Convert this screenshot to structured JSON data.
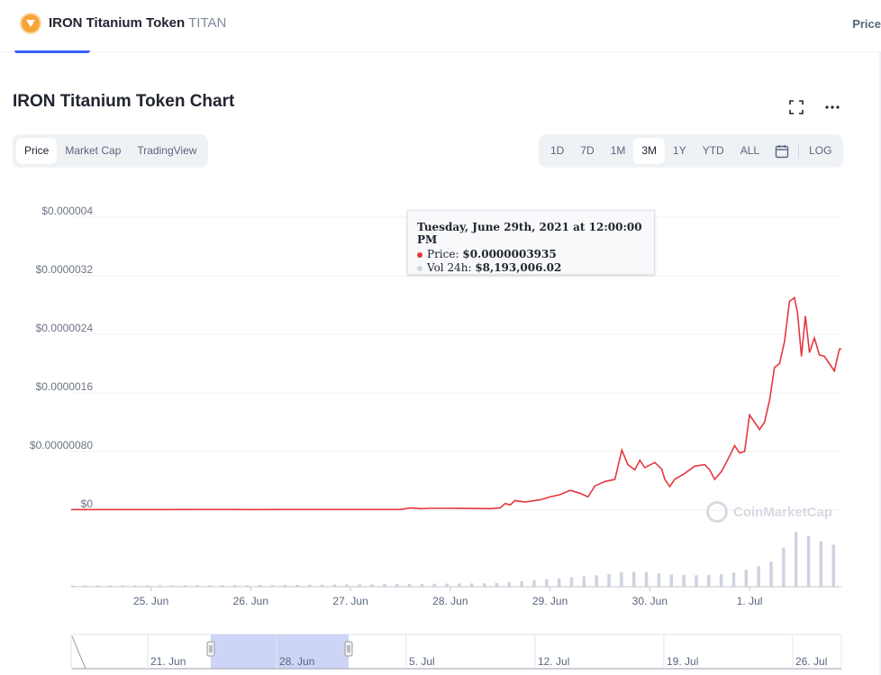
{
  "header": {
    "token_name": "IRON Titanium Token",
    "token_symbol": "TITAN",
    "right_label": "Price"
  },
  "chart_header": {
    "title": "IRON Titanium Token Chart"
  },
  "chart_type_tabs": [
    "Price",
    "Market Cap",
    "TradingView"
  ],
  "chart_type_active": "Price",
  "range_tabs": [
    "1D",
    "7D",
    "1M",
    "3M",
    "1Y",
    "YTD",
    "ALL"
  ],
  "range_active": "3M",
  "log_label": "LOG",
  "icons": {
    "logo": "iron-titanium-logo-icon",
    "fullscreen": "fullscreen-icon",
    "more": "more-icon",
    "calendar": "calendar-icon",
    "watermark": "coinmarketcap-logo-icon"
  },
  "tooltip": {
    "date": "Tuesday, June 29th, 2021 at 12:00:00 PM",
    "price_label": "Price:",
    "price_value": "$0.0000003935",
    "volume_label": "Vol 24h:",
    "volume_value": "$8,193,006.02"
  },
  "watermark_text": "CoinMarketCap",
  "colors": {
    "price_line": "#e4383d",
    "volume_bar": "#cfd3df",
    "navigator_window": "#c6cdf5",
    "accent": "#3861fb"
  },
  "chart_data": {
    "type": "line",
    "y_axis_labels": [
      "$0",
      "$0.00000080",
      "$0.0000016",
      "$0.0000024",
      "$0.0000032",
      "$0.000004"
    ],
    "y_axis_values": [
      0,
      8e-07,
      1.6e-06,
      2.4e-06,
      3.2e-06,
      4e-06
    ],
    "ylim": [
      0,
      4e-06
    ],
    "x_axis_labels": [
      "25. Jun",
      "26. Jun",
      "27. Jun",
      "28. Jun",
      "29. Jun",
      "30. Jun",
      "1. Jul"
    ],
    "xlim_days": [
      24.2,
      31.92
    ],
    "grid": true,
    "series": [
      {
        "values": [
          [
            24.2,
            8e-09
          ],
          [
            24.5,
            7.5e-09
          ],
          [
            24.8,
            7e-09
          ],
          [
            25.1,
            8e-09
          ],
          [
            25.4,
            8.2e-09
          ],
          [
            25.7,
            8.5e-09
          ],
          [
            26.0,
            8e-09
          ],
          [
            26.3,
            8.2e-09
          ],
          [
            26.6,
            8.5e-09
          ],
          [
            26.9,
            8.8e-09
          ],
          [
            27.2,
            9e-09
          ],
          [
            27.5,
            9.2e-09
          ],
          [
            27.6,
            3e-08
          ],
          [
            27.7,
            2e-08
          ],
          [
            27.8,
            2.5e-08
          ],
          [
            28.0,
            2.5e-08
          ],
          [
            28.2,
            2.2e-08
          ],
          [
            28.4,
            2e-08
          ],
          [
            28.5,
            3e-08
          ],
          [
            28.55,
            9e-08
          ],
          [
            28.6,
            7e-08
          ],
          [
            28.65,
            1.3e-07
          ],
          [
            28.75,
            1.1e-07
          ],
          [
            28.9,
            1.4e-07
          ],
          [
            29.0,
            1.8e-07
          ],
          [
            29.1,
            2.1e-07
          ],
          [
            29.2,
            2.7e-07
          ],
          [
            29.3,
            2.3e-07
          ],
          [
            29.38,
            1.8e-07
          ],
          [
            29.45,
            3.3e-07
          ],
          [
            29.55,
            3.9e-07
          ],
          [
            29.65,
            4.2e-07
          ],
          [
            29.72,
            8.2e-07
          ],
          [
            29.78,
            6.2e-07
          ],
          [
            29.85,
            5.5e-07
          ],
          [
            29.9,
            6.8e-07
          ],
          [
            29.95,
            5.8e-07
          ],
          [
            30.05,
            6.5e-07
          ],
          [
            30.12,
            5.6e-07
          ],
          [
            30.15,
            4.2e-07
          ],
          [
            30.2,
            3.2e-07
          ],
          [
            30.25,
            4.2e-07
          ],
          [
            30.35,
            5e-07
          ],
          [
            30.45,
            6e-07
          ],
          [
            30.55,
            6.2e-07
          ],
          [
            30.6,
            5.5e-07
          ],
          [
            30.65,
            4.2e-07
          ],
          [
            30.72,
            5.3e-07
          ],
          [
            30.8,
            7.4e-07
          ],
          [
            30.85,
            8.8e-07
          ],
          [
            30.9,
            7.8e-07
          ],
          [
            30.95,
            8e-07
          ],
          [
            31.0,
            1.3e-06
          ],
          [
            31.05,
            1.2e-06
          ],
          [
            31.1,
            1.1e-06
          ],
          [
            31.15,
            1.2e-06
          ],
          [
            31.2,
            1.5e-06
          ],
          [
            31.25,
            1.95e-06
          ],
          [
            31.3,
            2e-06
          ],
          [
            31.35,
            2.3e-06
          ],
          [
            31.4,
            2.85e-06
          ],
          [
            31.45,
            2.9e-06
          ],
          [
            31.48,
            2.7e-06
          ],
          [
            31.52,
            2.1e-06
          ],
          [
            31.56,
            2.65e-06
          ],
          [
            31.6,
            2.15e-06
          ],
          [
            31.65,
            2.35e-06
          ],
          [
            31.7,
            2.12e-06
          ],
          [
            31.75,
            2.1e-06
          ],
          [
            31.8,
            2e-06
          ],
          [
            31.85,
            1.9e-06
          ],
          [
            31.9,
            2.2e-06
          ],
          [
            31.92,
            2.2e-06
          ]
        ]
      }
    ],
    "volume": {
      "values": [
        [
          24.2,
          0.02
        ],
        [
          26.2,
          0.03
        ],
        [
          27.6,
          0.05
        ],
        [
          28.4,
          0.06
        ],
        [
          28.7,
          0.1
        ],
        [
          29.0,
          0.14
        ],
        [
          29.3,
          0.18
        ],
        [
          29.55,
          0.22
        ],
        [
          29.75,
          0.27
        ],
        [
          29.95,
          0.26
        ],
        [
          30.2,
          0.22
        ],
        [
          30.5,
          0.2
        ],
        [
          30.8,
          0.24
        ],
        [
          31.0,
          0.32
        ],
        [
          31.2,
          0.45
        ],
        [
          31.35,
          0.75
        ],
        [
          31.45,
          0.98
        ],
        [
          31.55,
          0.93
        ],
        [
          31.65,
          0.85
        ],
        [
          31.75,
          0.78
        ],
        [
          31.85,
          0.74
        ],
        [
          31.92,
          0.8
        ]
      ]
    },
    "navigator": {
      "x_axis_labels": [
        "21. Jun",
        "28. Jun",
        "5. Jul",
        "12. Jul",
        "19. Jul",
        "26. Jul"
      ]
    }
  }
}
